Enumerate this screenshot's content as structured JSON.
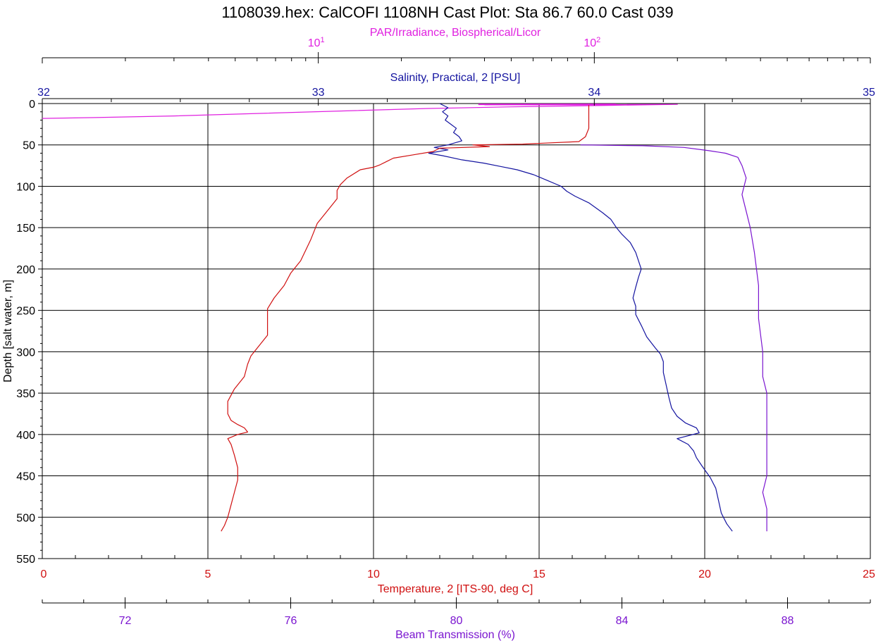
{
  "chart_data": {
    "type": "line",
    "title": "1108039.hex: CalCOFI 1108NH Cast Plot: Sta 86.7 60.0  Cast 039",
    "y_axis": {
      "label": "Depth [salt water, m]",
      "range": [
        0,
        550
      ],
      "inverted": true,
      "ticks": [
        0,
        50,
        100,
        150,
        200,
        250,
        300,
        350,
        400,
        450,
        500,
        550
      ]
    },
    "grid": true,
    "axes": [
      {
        "id": "par",
        "label": "PAR/Irradiance, Biospherical/Licor",
        "position": "top-1",
        "scale": "log",
        "range": [
          1,
          1000
        ],
        "ticks": [
          {
            "base": "10",
            "exp": "1",
            "value": 10
          },
          {
            "base": "10",
            "exp": "2",
            "value": 100
          }
        ],
        "color": "#e020e0"
      },
      {
        "id": "sal",
        "label": "Salinity, Practical, 2 [PSU]",
        "position": "top-2",
        "scale": "linear",
        "range": [
          32,
          35
        ],
        "ticks": [
          "32",
          "33",
          "34",
          "35"
        ],
        "color": "#1414a0"
      },
      {
        "id": "temp",
        "label": "Temperature, 2 [ITS-90, deg C]",
        "position": "bottom-1",
        "scale": "linear",
        "range": [
          0,
          25
        ],
        "ticks": [
          "0",
          "5",
          "10",
          "15",
          "20",
          "25"
        ],
        "color": "#d01010"
      },
      {
        "id": "beam",
        "label": "Beam Transmission (%)",
        "position": "bottom-2",
        "scale": "linear",
        "range": [
          70,
          90
        ],
        "ticks": [
          "72",
          "76",
          "80",
          "84",
          "88"
        ],
        "color": "#7a14d0"
      }
    ],
    "series": [
      {
        "axis": "par",
        "color": "#e020e0",
        "points": [
          [
            1.0,
            18
          ],
          [
            1.5,
            17
          ],
          [
            3,
            15
          ],
          [
            6,
            12
          ],
          [
            12,
            9
          ],
          [
            25,
            6
          ],
          [
            50,
            4
          ],
          [
            80,
            3
          ],
          [
            130,
            2
          ],
          [
            200,
            1
          ],
          [
            160,
            1
          ],
          [
            90,
            1.5
          ],
          [
            40,
            1.5
          ]
        ]
      },
      {
        "axis": "sal",
        "color": "#1414a0",
        "points": [
          [
            33.44,
            0
          ],
          [
            33.47,
            5
          ],
          [
            33.45,
            10
          ],
          [
            33.47,
            15
          ],
          [
            33.46,
            20
          ],
          [
            33.48,
            25
          ],
          [
            33.5,
            30
          ],
          [
            33.49,
            35
          ],
          [
            33.51,
            40
          ],
          [
            33.52,
            45
          ],
          [
            33.47,
            50
          ],
          [
            33.42,
            53
          ],
          [
            33.47,
            56
          ],
          [
            33.4,
            60
          ],
          [
            33.45,
            63
          ],
          [
            33.52,
            68
          ],
          [
            33.6,
            72
          ],
          [
            33.66,
            76
          ],
          [
            33.72,
            80
          ],
          [
            33.78,
            86
          ],
          [
            33.83,
            93
          ],
          [
            33.88,
            100
          ],
          [
            33.9,
            106
          ],
          [
            33.93,
            112
          ],
          [
            33.98,
            120
          ],
          [
            34.03,
            132
          ],
          [
            34.06,
            140
          ],
          [
            34.08,
            150
          ],
          [
            34.1,
            158
          ],
          [
            34.13,
            168
          ],
          [
            34.15,
            180
          ],
          [
            34.16,
            190
          ],
          [
            34.17,
            200
          ],
          [
            34.16,
            210
          ],
          [
            34.15,
            222
          ],
          [
            34.14,
            235
          ],
          [
            34.15,
            245
          ],
          [
            34.15,
            255
          ],
          [
            34.17,
            268
          ],
          [
            34.19,
            282
          ],
          [
            34.22,
            295
          ],
          [
            34.24,
            303
          ],
          [
            34.25,
            312
          ],
          [
            34.25,
            325
          ],
          [
            34.26,
            340
          ],
          [
            34.27,
            355
          ],
          [
            34.28,
            368
          ],
          [
            34.3,
            378
          ],
          [
            34.33,
            386
          ],
          [
            34.37,
            392
          ],
          [
            34.38,
            398
          ],
          [
            34.3,
            405
          ],
          [
            34.34,
            412
          ],
          [
            34.36,
            420
          ],
          [
            34.37,
            428
          ],
          [
            34.39,
            438
          ],
          [
            34.42,
            452
          ],
          [
            34.44,
            465
          ],
          [
            34.45,
            480
          ],
          [
            34.46,
            495
          ],
          [
            34.48,
            508
          ],
          [
            34.5,
            517
          ]
        ]
      },
      {
        "axis": "temp",
        "color": "#d01010",
        "points": [
          [
            16.5,
            0
          ],
          [
            16.5,
            10
          ],
          [
            16.5,
            20
          ],
          [
            16.5,
            30
          ],
          [
            16.4,
            40
          ],
          [
            16.2,
            46
          ],
          [
            14.5,
            49
          ],
          [
            13,
            50
          ],
          [
            13.5,
            52
          ],
          [
            12,
            54
          ],
          [
            11.8,
            58
          ],
          [
            11.2,
            62
          ],
          [
            10.6,
            66
          ],
          [
            10.4,
            70
          ],
          [
            10.2,
            74
          ],
          [
            10.0,
            77
          ],
          [
            9.6,
            80
          ],
          [
            9.2,
            90
          ],
          [
            9.0,
            98
          ],
          [
            8.9,
            105
          ],
          [
            8.9,
            115
          ],
          [
            8.6,
            130
          ],
          [
            8.3,
            145
          ],
          [
            8.1,
            165
          ],
          [
            7.8,
            190
          ],
          [
            7.5,
            205
          ],
          [
            7.3,
            220
          ],
          [
            7.0,
            235
          ],
          [
            6.8,
            248
          ],
          [
            6.8,
            260
          ],
          [
            6.8,
            280
          ],
          [
            6.5,
            295
          ],
          [
            6.3,
            305
          ],
          [
            6.2,
            315
          ],
          [
            6.1,
            330
          ],
          [
            5.8,
            345
          ],
          [
            5.6,
            360
          ],
          [
            5.6,
            375
          ],
          [
            5.7,
            383
          ],
          [
            5.9,
            388
          ],
          [
            6.1,
            392
          ],
          [
            6.2,
            397
          ],
          [
            5.9,
            400
          ],
          [
            5.6,
            405
          ],
          [
            5.7,
            412
          ],
          [
            5.8,
            425
          ],
          [
            5.9,
            440
          ],
          [
            5.9,
            455
          ],
          [
            5.8,
            470
          ],
          [
            5.7,
            485
          ],
          [
            5.6,
            500
          ],
          [
            5.5,
            510
          ],
          [
            5.4,
            517
          ]
        ]
      },
      {
        "axis": "beam",
        "color": "#7a14d0",
        "points": [
          [
            83.0,
            50
          ],
          [
            84.5,
            51
          ],
          [
            85.5,
            53
          ],
          [
            86.1,
            57
          ],
          [
            86.5,
            60
          ],
          [
            86.8,
            65
          ],
          [
            86.9,
            75
          ],
          [
            87.0,
            90
          ],
          [
            86.9,
            110
          ],
          [
            87.0,
            130
          ],
          [
            87.1,
            150
          ],
          [
            87.2,
            180
          ],
          [
            87.3,
            220
          ],
          [
            87.3,
            260
          ],
          [
            87.4,
            300
          ],
          [
            87.4,
            330
          ],
          [
            87.5,
            350
          ],
          [
            87.5,
            400
          ],
          [
            87.5,
            450
          ],
          [
            87.4,
            470
          ],
          [
            87.5,
            490
          ],
          [
            87.5,
            517
          ]
        ]
      }
    ]
  }
}
